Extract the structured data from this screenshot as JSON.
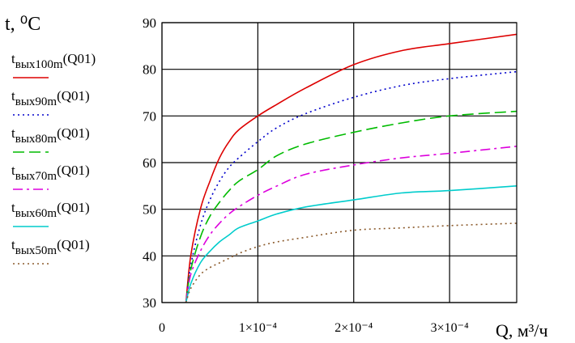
{
  "chart_data": {
    "type": "line",
    "ylabel": "t, ⁰C",
    "xlabel": "Q, м³/ч",
    "xlim": [
      0,
      0.00037
    ],
    "ylim": [
      30,
      90
    ],
    "x_ticks": [
      {
        "value": 0,
        "label": "0"
      },
      {
        "value": 0.0001,
        "label": "1×10⁻⁴"
      },
      {
        "value": 0.0002,
        "label": "2×10⁻⁴"
      },
      {
        "value": 0.0003,
        "label": "3×10⁻⁴"
      }
    ],
    "y_ticks": [
      30,
      40,
      50,
      60,
      70,
      80,
      90
    ],
    "grid": true,
    "legend_position": "left",
    "x": [
      2.5e-05,
      3e-05,
      4e-05,
      5e-05,
      6e-05,
      7e-05,
      8e-05,
      0.0001,
      0.00012,
      0.00015,
      0.0002,
      0.00025,
      0.0003,
      0.00037
    ],
    "series": [
      {
        "name": "tвых100m(Q01)",
        "color": "#dd0000",
        "dash": "solid",
        "values": [
          30,
          40,
          50,
          56,
          61,
          64.5,
          67,
          70,
          72.5,
          76,
          81,
          84,
          85.5,
          87.5
        ]
      },
      {
        "name": "tвых90m(Q01)",
        "color": "#0000cc",
        "dash": "dotted",
        "values": [
          30,
          38,
          46.5,
          52,
          56,
          59,
          61,
          64.5,
          67.5,
          70.5,
          74,
          76.5,
          78,
          79.5
        ]
      },
      {
        "name": "tвых80m(Q01)",
        "color": "#00bb00",
        "dash": "dashed",
        "values": [
          30,
          37,
          44,
          48.5,
          51.5,
          54,
          56,
          58.5,
          61.5,
          64,
          66.5,
          68.5,
          70,
          71
        ]
      },
      {
        "name": "tвых70m(Q01)",
        "color": "#dd00dd",
        "dash": "dashdot",
        "values": [
          30,
          36,
          41,
          44.5,
          47,
          49,
          50.5,
          53,
          55,
          57.5,
          59.5,
          61,
          62,
          63.5
        ]
      },
      {
        "name": "tвых60m(Q01)",
        "color": "#00cccc",
        "dash": "solid",
        "values": [
          30,
          34,
          38.5,
          41,
          43,
          44.5,
          46,
          47.5,
          49,
          50.5,
          52,
          53.5,
          54,
          55
        ]
      },
      {
        "name": "tвых50m(Q01)",
        "color": "#8b5a2b",
        "dash": "dotted",
        "values": [
          30,
          33,
          36,
          37.5,
          38.5,
          39.5,
          40.5,
          42,
          43,
          44,
          45.5,
          46,
          46.5,
          47
        ]
      }
    ]
  }
}
